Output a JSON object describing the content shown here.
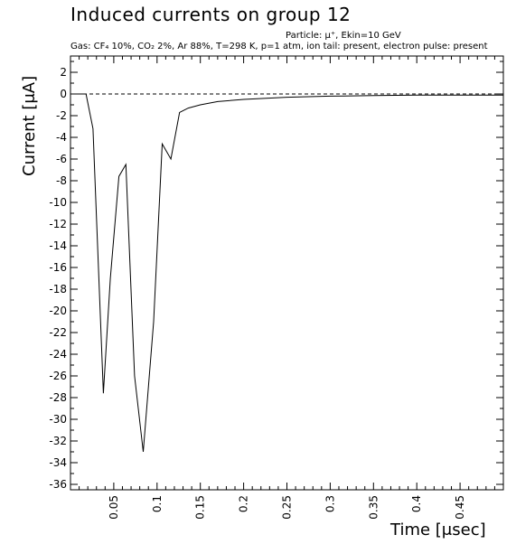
{
  "chart_data": {
    "type": "line",
    "title": "Induced currents on group 12",
    "subtitle_particle": "Particle: μ⁺, Ekin=10 GeV",
    "subtitle_gas": "Gas: CF₄ 10%, CO₂ 2%, Ar 88%, T=298 K, p=1 atm",
    "subtitle_pulse": "ion tail: present, electron pulse: present",
    "xlabel": "Time [μsec]",
    "ylabel": "Current [μA]",
    "xlim": [
      0,
      0.5
    ],
    "ylim": [
      -36.5,
      3.5
    ],
    "x_ticks": [
      0.05,
      0.1,
      0.15,
      0.2,
      0.25,
      0.3,
      0.35,
      0.4,
      0.45
    ],
    "x_tick_labels": [
      "0.05",
      "0.1",
      "0.15",
      "0.2",
      "0.25",
      "0.3",
      "0.35",
      "0.4",
      "0.45"
    ],
    "y_ticks": [
      2,
      0,
      -2,
      -4,
      -6,
      -8,
      -10,
      -12,
      -14,
      -16,
      -18,
      -20,
      -22,
      -24,
      -26,
      -28,
      -30,
      -32,
      -34,
      -36
    ],
    "y_tick_labels": [
      "2",
      "0",
      "-2",
      "-4",
      "-6",
      "-8",
      "-10",
      "-12",
      "-14",
      "-16",
      "-18",
      "-20",
      "-22",
      "-24",
      "-26",
      "-28",
      "-30",
      "-32",
      "-34",
      "-36"
    ],
    "grid": false,
    "baseline": 0,
    "series": [
      {
        "x": [
          0.0,
          0.018,
          0.026,
          0.038,
          0.046,
          0.056,
          0.064,
          0.074,
          0.084,
          0.096,
          0.106,
          0.116,
          0.126,
          0.136,
          0.15,
          0.17,
          0.2,
          0.25,
          0.3,
          0.35,
          0.4,
          0.45,
          0.5
        ],
        "y": [
          0.0,
          0.0,
          -3.2,
          -27.6,
          -17.0,
          -7.6,
          -6.5,
          -26.0,
          -33.0,
          -21.0,
          -4.6,
          -6.0,
          -1.7,
          -1.3,
          -1.0,
          -0.7,
          -0.5,
          -0.3,
          -0.2,
          -0.15,
          -0.1,
          -0.1,
          -0.1
        ]
      }
    ]
  }
}
